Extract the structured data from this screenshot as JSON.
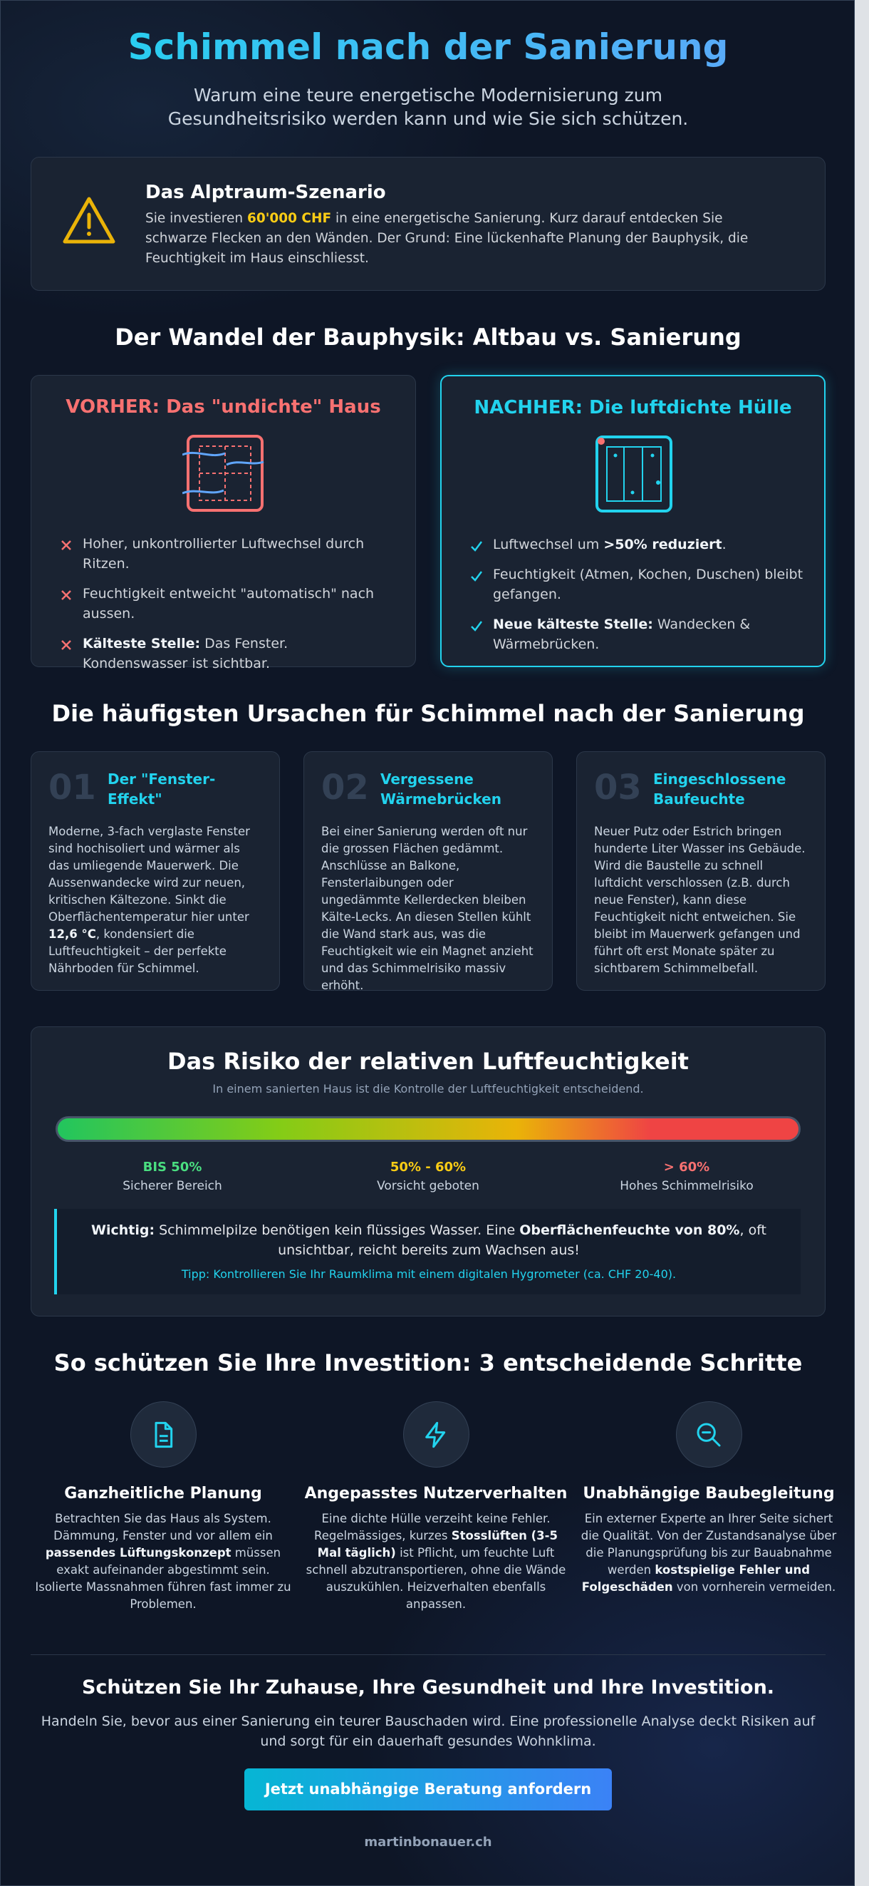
{
  "header": {
    "title": "Schimmel nach der Sanierung",
    "subtitle": "Warum eine teure energetische Modernisierung zum Gesundheitsrisiko werden kann und wie Sie sich schützen."
  },
  "alert": {
    "title": "Das Alptraum-Szenario",
    "text": [
      "Sie investieren ",
      "60'000 CHF",
      " in eine energetische Sanierung. Kurz darauf entdecken Sie schwarze Flecken an den Wänden. Der Grund: Eine lückenhafte Planung der Bauphysik, die Feuchtigkeit im Haus einschliesst."
    ]
  },
  "comparison": {
    "heading": "Der Wandel der Bauphysik: Altbau vs. Sanierung",
    "before": {
      "title": "VORHER: Das \"undichte\" Haus",
      "items": [
        [
          "Hoher, unkontrollierter Luftwechsel durch Ritzen."
        ],
        [
          "Feuchtigkeit entweicht \"automatisch\" nach aussen."
        ],
        [
          "Kälteste Stelle:",
          " Das Fenster. Kondenswasser ist sichtbar."
        ]
      ]
    },
    "after": {
      "title": "NACHHER: Die luftdichte Hülle",
      "items": [
        [
          "Luftwechsel um ",
          ">50% reduziert",
          "."
        ],
        [
          "Feuchtigkeit (Atmen, Kochen, Duschen) bleibt gefangen."
        ],
        [
          "Neue kälteste Stelle:",
          " Wandecken & Wärmebrücken."
        ]
      ]
    }
  },
  "causes": {
    "heading": "Die häufigsten Ursachen für Schimmel nach der Sanierung",
    "items": [
      {
        "number": "01",
        "title": "Der \"Fenster-Effekt\"",
        "text": [
          "Moderne, 3-fach verglaste Fenster sind hochisoliert und wärmer als das umliegende Mauerwerk. Die Aussenwandecke wird zur neuen, kritischen Kältezone. Sinkt die Oberflächentemperatur hier unter ",
          "12,6 °C",
          ", kondensiert die Luftfeuchtigkeit – der perfekte Nährboden für Schimmel."
        ]
      },
      {
        "number": "02",
        "title": "Vergessene Wärmebrücken",
        "text": [
          "Bei einer Sanierung werden oft nur die grossen Flächen gedämmt. Anschlüsse an Balkone, Fensterlaibungen oder ungedämmte Kellerdecken bleiben Kälte-Lecks. An diesen Stellen kühlt die Wand stark aus, was die Feuchtigkeit wie ein Magnet anzieht und das Schimmelrisiko massiv erhöht."
        ]
      },
      {
        "number": "03",
        "title": "Eingeschlossene Baufeuchte",
        "text": [
          "Neuer Putz oder Estrich bringen hunderte Liter Wasser ins Gebäude. Wird die Baustelle zu schnell luftdicht verschlossen (z.B. durch neue Fenster), kann diese Feuchtigkeit nicht entweichen. Sie bleibt im Mauerwerk gefangen und führt oft erst Monate später zu sichtbarem Schimmelbefall."
        ]
      }
    ]
  },
  "humidity": {
    "title": "Das Risiko der relativen Luftfeuchtigkeit",
    "subtitle": "In einem sanierten Haus ist die Kontrolle der Luftfeuchtigkeit entscheidend.",
    "zones": [
      {
        "label": "BIS 50%",
        "description": "Sicherer Bereich"
      },
      {
        "label": "50% - 60%",
        "description": "Vorsicht geboten"
      },
      {
        "label": "> 60%",
        "description": "Hohes Schimmelrisiko"
      }
    ],
    "note": [
      "Wichtig:",
      " Schimmelpilze benötigen kein flüssiges Wasser. Eine ",
      "Oberflächenfeuchte von 80%",
      ", oft unsichtbar, reicht bereits zum Wachsen aus!"
    ],
    "tip": "Tipp: Kontrollieren Sie Ihr Raumklima mit einem digitalen Hygrometer (ca. CHF 20-40)."
  },
  "steps": {
    "heading": "So schützen Sie Ihre Investition: 3 entscheidende Schritte",
    "items": [
      {
        "title": "Ganzheitliche Planung",
        "text": [
          "Betrachten Sie das Haus als System. Dämmung, Fenster und vor allem ein ",
          "passendes Lüftungskonzept",
          " müssen exakt aufeinander abgestimmt sein. Isolierte Massnahmen führen fast immer zu Problemen."
        ]
      },
      {
        "title": "Angepasstes Nutzerverhalten",
        "text": [
          "Eine dichte Hülle verzeiht keine Fehler. Regelmässiges, kurzes ",
          "Stosslüften (3-5 Mal täglich)",
          " ist Pflicht, um feuchte Luft schnell abzutransportieren, ohne die Wände auszukühlen. Heizverhalten ebenfalls anpassen."
        ]
      },
      {
        "title": "Unabhängige Baubegleitung",
        "text": [
          "Ein externer Experte an Ihrer Seite sichert die Qualität. Von der Zustandsanalyse über die Planungsprüfung bis zur Bauabnahme werden ",
          "kostspielige Fehler und Folgeschäden",
          " von vornherein vermeiden."
        ]
      }
    ]
  },
  "cta": {
    "heading": "Schützen Sie Ihr Zuhause, Ihre Gesundheit und Ihre Investition.",
    "text": "Handeln Sie, bevor aus einer Sanierung ein teurer Bauschaden wird. Eine professionelle Analyse deckt Risiken auf und sorgt für ein dauerhaft gesundes Wohnklima.",
    "button": "Jetzt unabhängige Beratung anfordern"
  },
  "footer": {
    "site": "martinbonauer.ch"
  }
}
